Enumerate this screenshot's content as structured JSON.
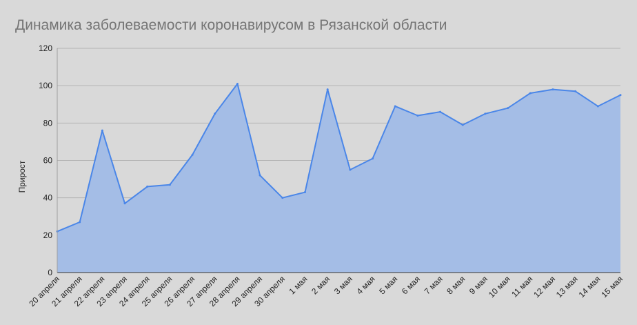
{
  "chart_data": {
    "type": "area",
    "title": "Динамика заболеваемости коронавирусом в Рязанской области",
    "xlabel": "",
    "ylabel": "Прирост",
    "ylim": [
      0,
      120
    ],
    "yticks": [
      0,
      20,
      40,
      60,
      80,
      100,
      120
    ],
    "grid": true,
    "legend": "none",
    "categories": [
      "20 апреля",
      "21 апреля",
      "22 апреля",
      "23 апреля",
      "24 апреля",
      "25 апреля",
      "26 апреля",
      "27 апреля",
      "28 апреля",
      "29 апреля",
      "30 апреля",
      "1 мая",
      "2 мая",
      "3 мая",
      "4 мая",
      "5 мая",
      "6 мая",
      "7 мая",
      "8 мая",
      "9 мая",
      "10 мая",
      "11 мая",
      "12 мая",
      "13 мая",
      "14 мая",
      "15 мая"
    ],
    "series": [
      {
        "values": [
          22,
          27,
          76,
          37,
          46,
          47,
          63,
          85,
          101,
          52,
          40,
          43,
          98,
          55,
          61,
          89,
          84,
          86,
          79,
          85,
          88,
          96,
          98,
          97,
          89,
          95
        ],
        "line_color": "#4a86e8",
        "fill_color": "#a4bde6"
      }
    ]
  }
}
